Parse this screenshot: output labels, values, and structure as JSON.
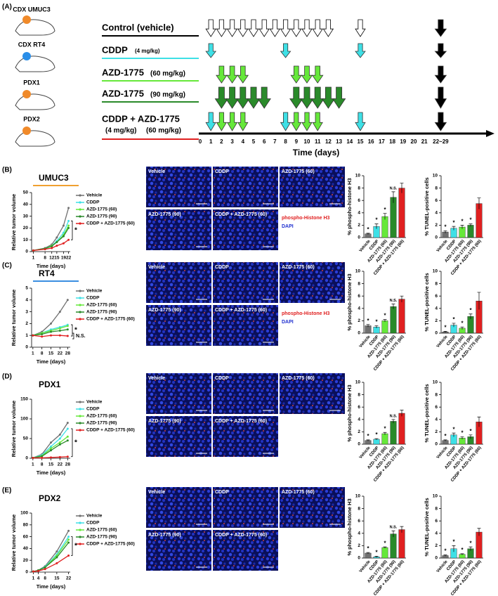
{
  "schedule": {
    "panel_label": "(A)",
    "models": [
      "CDX UMUC3",
      "CDX RT4",
      "PDX1",
      "PDX2"
    ],
    "model_colors": [
      "#f08a2a",
      "#2a8ee8",
      "#f08a2a",
      "#f08a2a"
    ],
    "rows": [
      {
        "label": "Control (vehicle)",
        "doses": [],
        "underline": "#000000",
        "groups": [
          {
            "color": "#ffffff",
            "days": [
              1,
              2,
              3,
              4,
              5,
              6,
              7,
              8,
              9,
              10,
              11,
              12,
              15
            ]
          }
        ]
      },
      {
        "label": "CDDP",
        "doses": [
          "(4 mg/kg)"
        ],
        "underline": "#3ee0e6",
        "groups": [
          {
            "color": "#3ee0e6",
            "days": [
              1,
              8,
              15
            ]
          }
        ]
      },
      {
        "label": "AZD-1775",
        "doses": [
          "(60 mg/kg)"
        ],
        "underline": "#66e83a",
        "groups": [
          {
            "color": "#66e83a",
            "days": [
              2,
              3,
              4,
              9,
              10,
              11
            ]
          }
        ]
      },
      {
        "label": "AZD-1775",
        "doses": [
          "(90 mg/kg)"
        ],
        "underline": "#2a8a2a",
        "groups": [
          {
            "color": "#2a8a2a",
            "days": [
              2,
              3,
              4,
              5,
              6,
              9,
              10,
              11,
              12,
              13
            ]
          }
        ]
      },
      {
        "label": "CDDP + AZD-1775",
        "doses": [
          "(4 mg/kg)",
          "(60 mg/kg)"
        ],
        "underline": "#e02020",
        "groups": [
          {
            "color": "#3ee0e6",
            "days": [
              1,
              8,
              15
            ]
          },
          {
            "color": "#66e83a",
            "days": [
              2,
              3,
              4,
              9,
              10,
              11
            ]
          }
        ]
      }
    ],
    "endpoint": 22,
    "endpoint_color": "#000000",
    "xticks": [
      0,
      1,
      2,
      3,
      4,
      5,
      6,
      7,
      8,
      9,
      10,
      11,
      12,
      13,
      14,
      15,
      16,
      17,
      18,
      19,
      20,
      21,
      {
        "value": 22,
        "label": "22~29"
      }
    ],
    "xlabel": "Time (days)"
  },
  "bar_categories": [
    "Vehicle",
    "CDDP",
    "AZD-1775 (60)",
    "AZD-1775 (90)",
    "CDDP + AZD-1775 (60)"
  ],
  "bar_colors": [
    "#707070",
    "#3ee0e6",
    "#66e83a",
    "#2a8a2a",
    "#e02020"
  ],
  "image_labels": [
    "Vehicle",
    "CDDP",
    "AZD-1775 (60)",
    "AZD-1775 (90)",
    "CDDP + AZD-1775 (60)"
  ],
  "panels": [
    {
      "label": "(B)",
      "model": "UMUC3",
      "underline": "#f0a030",
      "growth": {
        "type": "line",
        "ylabel": "Relative tumor volume",
        "xlabel": "Time (days)",
        "x": [
          1,
          8,
          12,
          15,
          19,
          22
        ],
        "xlim": [
          0,
          23
        ],
        "xticks": [
          1,
          8,
          12,
          15,
          19,
          22
        ],
        "ylim": [
          0,
          50
        ],
        "yticks": [
          0,
          10,
          20,
          30,
          40,
          50
        ],
        "annotations": [
          "*"
        ],
        "series": [
          {
            "name": "Vehicle",
            "color": "#707070",
            "values": [
              1,
              3,
              6,
              12,
              22,
              37
            ]
          },
          {
            "name": "CDDP",
            "color": "#3ee0e6",
            "values": [
              1,
              2.5,
              5,
              9,
              16,
              26
            ]
          },
          {
            "name": "AZD-1775 (60)",
            "color": "#66e83a",
            "values": [
              1,
              2.5,
              5,
              8,
              14,
              22
            ]
          },
          {
            "name": "AZD-1775 (90)",
            "color": "#2a8a2a",
            "values": [
              1,
              2.5,
              4.5,
              8,
              13,
              20
            ]
          },
          {
            "name": "CDDP + AZD-1775 (60)",
            "color": "#e02020",
            "values": [
              1,
              2,
              3,
              5,
              7,
              10
            ]
          }
        ]
      },
      "stain_legend": [
        "phospho-Histone H3",
        "DAPI"
      ],
      "bars": [
        {
          "type": "bar",
          "ylabel": "% phospho-histone H3",
          "ylim": [
            0,
            10
          ],
          "yticks": [
            0,
            2,
            4,
            6,
            8,
            10
          ],
          "values": [
            0.6,
            1.8,
            3.4,
            6.5,
            8.0
          ],
          "errors": [
            0.1,
            0.4,
            0.5,
            0.9,
            0.8
          ],
          "labels": [
            "*",
            "*",
            "*",
            "N.S.",
            null
          ]
        },
        {
          "type": "bar",
          "ylabel": "% TUNEL-positive cells",
          "ylim": [
            0,
            10
          ],
          "yticks": [
            0,
            2,
            4,
            6,
            8,
            10
          ],
          "values": [
            0.9,
            1.5,
            1.7,
            2.0,
            5.5
          ],
          "errors": [
            0.2,
            0.3,
            0.3,
            0.2,
            0.9
          ],
          "labels": [
            "*",
            "*",
            "*",
            "*",
            null
          ]
        }
      ]
    },
    {
      "label": "(C)",
      "model": "RT4",
      "underline": "#3a8ee0",
      "growth": {
        "type": "line",
        "ylabel": "Relative tumor volume",
        "xlabel": "Time (days)",
        "x": [
          1,
          8,
          15,
          22,
          28
        ],
        "xlim": [
          0,
          30
        ],
        "xticks": [
          1,
          8,
          15,
          22,
          28
        ],
        "ylim": [
          0,
          5
        ],
        "yticks": [
          0,
          1,
          2,
          3,
          4,
          5
        ],
        "annotations": [
          "*",
          "N.S."
        ],
        "series": [
          {
            "name": "Vehicle",
            "color": "#707070",
            "values": [
              1,
              1.3,
              2,
              3,
              4
            ]
          },
          {
            "name": "CDDP",
            "color": "#3ee0e6",
            "values": [
              1,
              1.2,
              1.5,
              1.7,
              1.9
            ]
          },
          {
            "name": "AZD-1775 (60)",
            "color": "#66e83a",
            "values": [
              1,
              1.2,
              1.4,
              1.6,
              1.8
            ]
          },
          {
            "name": "AZD-1775 (90)",
            "color": "#2a8a2a",
            "values": [
              1,
              1.1,
              1.3,
              1.4,
              1.5
            ]
          },
          {
            "name": "CDDP + AZD-1775 (60)",
            "color": "#e02020",
            "values": [
              1,
              0.9,
              1,
              1,
              0.95
            ]
          }
        ]
      },
      "stain_legend": [
        "phospho-Histone H3",
        "DAPI"
      ],
      "bars": [
        {
          "type": "bar",
          "ylabel": "% phospho-histone H3",
          "ylim": [
            0,
            10
          ],
          "yticks": [
            0,
            2,
            4,
            6,
            8,
            10
          ],
          "values": [
            1.2,
            1.0,
            2.0,
            4.3,
            5.5
          ],
          "errors": [
            0.2,
            0.2,
            0.2,
            0.4,
            0.5
          ],
          "labels": [
            "*",
            "*",
            "*",
            "N.S.",
            null
          ]
        },
        {
          "type": "bar",
          "ylabel": "% TUNEL-positive cells",
          "ylim": [
            0,
            10
          ],
          "yticks": [
            0,
            2,
            4,
            6,
            8,
            10
          ],
          "values": [
            0.2,
            1.3,
            0.8,
            2.7,
            5.2
          ],
          "errors": [
            0.1,
            0.3,
            0.2,
            0.4,
            1.4
          ],
          "labels": [
            "*",
            "*",
            "*",
            "*",
            null
          ]
        }
      ]
    },
    {
      "label": "(D)",
      "model": "PDX1",
      "underline": null,
      "growth": {
        "type": "line",
        "ylabel": "Relative tumor volume",
        "xlabel": "Time (days)",
        "x": [
          1,
          8,
          15,
          22,
          28
        ],
        "xlim": [
          0,
          30
        ],
        "xticks": [
          1,
          8,
          15,
          22,
          28
        ],
        "ylim": [
          0,
          150
        ],
        "yticks": [
          0,
          50,
          100,
          150
        ],
        "annotations": [
          "*"
        ],
        "series": [
          {
            "name": "Vehicle",
            "color": "#707070",
            "values": [
              1,
              10,
              40,
              60,
              90
            ]
          },
          {
            "name": "CDDP",
            "color": "#3ee0e6",
            "values": [
              1,
              8,
              30,
              50,
              75
            ]
          },
          {
            "name": "AZD-1775 (60)",
            "color": "#66e83a",
            "values": [
              1,
              6,
              25,
              40,
              55
            ]
          },
          {
            "name": "AZD-1775 (90)",
            "color": "#2a8a2a",
            "values": [
              1,
              5,
              20,
              35,
              45
            ]
          },
          {
            "name": "CDDP + AZD-1775 (60)",
            "color": "#e02020",
            "values": [
              1,
              1,
              2,
              3,
              4
            ]
          }
        ]
      },
      "stain_legend": [],
      "bars": [
        {
          "type": "bar",
          "ylabel": "% phospho-histone H3",
          "ylim": [
            0,
            10
          ],
          "yticks": [
            0,
            2,
            4,
            6,
            8,
            10
          ],
          "values": [
            0.6,
            0.8,
            1.7,
            3.7,
            5.0
          ],
          "errors": [
            0.1,
            0.1,
            0.2,
            0.3,
            0.5
          ],
          "labels": [
            "*",
            "*",
            "*",
            "N.S.",
            null
          ]
        },
        {
          "type": "bar",
          "ylabel": "% TUNEL-positive cells",
          "ylim": [
            0,
            10
          ],
          "yticks": [
            0,
            2,
            4,
            6,
            8,
            10
          ],
          "values": [
            0.6,
            1.5,
            1.0,
            1.2,
            3.6
          ],
          "errors": [
            0.1,
            0.3,
            0.2,
            0.3,
            0.8
          ],
          "labels": [
            "*",
            "*",
            "*",
            "*",
            null
          ]
        }
      ]
    },
    {
      "label": "(E)",
      "model": "PDX2",
      "underline": null,
      "growth": {
        "type": "line",
        "ylabel": "Relative tumor volume",
        "xlabel": "Time (days)",
        "x": [
          1,
          4,
          8,
          15,
          22
        ],
        "xlim": [
          0,
          23
        ],
        "xticks": [
          1,
          4,
          8,
          15,
          22
        ],
        "ylim": [
          0,
          100
        ],
        "yticks": [
          0,
          20,
          40,
          60,
          80,
          100
        ],
        "annotations": [
          "*"
        ],
        "series": [
          {
            "name": "Vehicle",
            "color": "#707070",
            "values": [
              1,
              3,
              10,
              35,
              70
            ]
          },
          {
            "name": "CDDP",
            "color": "#3ee0e6",
            "values": [
              1,
              3,
              9,
              30,
              60
            ]
          },
          {
            "name": "AZD-1775 (60)",
            "color": "#66e83a",
            "values": [
              1,
              3,
              8,
              28,
              55
            ]
          },
          {
            "name": "AZD-1775 (90)",
            "color": "#2a8a2a",
            "values": [
              1,
              3,
              8,
              25,
              50
            ]
          },
          {
            "name": "CDDP + AZD-1775 (60)",
            "color": "#e02020",
            "values": [
              1,
              2,
              5,
              15,
              28
            ]
          }
        ]
      },
      "stain_legend": [],
      "bars": [
        {
          "type": "bar",
          "ylabel": "% phospho-histone H3",
          "ylim": [
            0,
            10
          ],
          "yticks": [
            0,
            2,
            4,
            6,
            8,
            10
          ],
          "values": [
            0.8,
            0.2,
            1.7,
            3.9,
            4.6
          ],
          "errors": [
            0.1,
            0.1,
            0.1,
            0.5,
            0.5
          ],
          "labels": [
            "*",
            "*",
            "*",
            "N.S.",
            null
          ]
        },
        {
          "type": "bar",
          "ylabel": "% TUNEL-positive cells",
          "ylim": [
            0,
            10
          ],
          "yticks": [
            0,
            2,
            4,
            6,
            8,
            10
          ],
          "values": [
            0.4,
            1.5,
            0.6,
            1.5,
            4.2
          ],
          "errors": [
            0.1,
            0.5,
            0.1,
            0.3,
            0.6
          ],
          "labels": [
            "*",
            "*",
            "*",
            "*",
            null
          ]
        }
      ]
    }
  ]
}
